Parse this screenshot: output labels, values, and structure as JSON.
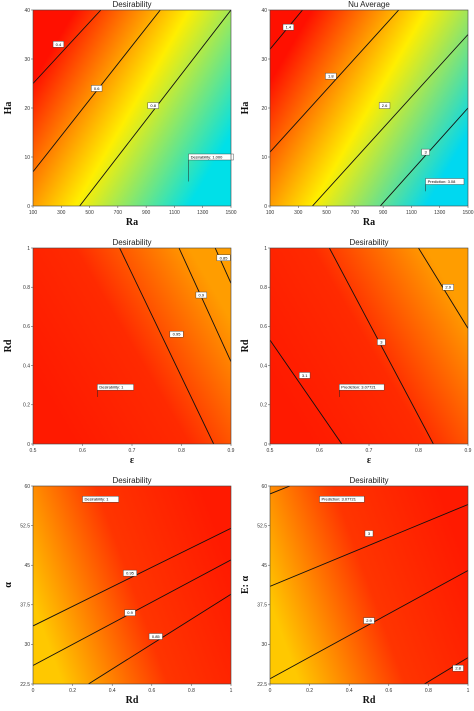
{
  "chart_data": [
    {
      "type": "contour",
      "title": "Desirability",
      "xlabel": "Ra",
      "ylabel": "Ha",
      "xlim": [
        100,
        1500
      ],
      "ylim": [
        0,
        40
      ],
      "xticks": [
        "100",
        "300",
        "500",
        "700",
        "900",
        "1100",
        "1300",
        "1500"
      ],
      "yticks": [
        "0",
        "10",
        "20",
        "30",
        "40"
      ],
      "gradient": {
        "from": "#00e0e8",
        "mid": "#ffee00",
        "to": "#ff1000",
        "angle": 150
      },
      "contours": [
        {
          "label": "0.4",
          "points": [
            [
              100,
              25
            ],
            [
              580,
              40
            ]
          ],
          "label_at": [
            280,
            33
          ]
        },
        {
          "label": "0.6",
          "points": [
            [
              100,
              7
            ],
            [
              1000,
              40
            ]
          ],
          "label_at": [
            550,
            24
          ]
        },
        {
          "label": "0.8",
          "points": [
            [
              430,
              0
            ],
            [
              1500,
              40
            ]
          ],
          "label_at": [
            950,
            20.5
          ]
        }
      ],
      "flag": {
        "text": "Desirability: 1.000",
        "at": [
          1200,
          5
        ],
        "box_at": [
          1200,
          10
        ]
      }
    },
    {
      "type": "contour",
      "title": "Nu Average",
      "xlabel": "Ra",
      "ylabel": "Ha",
      "xlim": [
        100,
        1500
      ],
      "ylim": [
        0,
        40
      ],
      "xticks": [
        "100",
        "300",
        "500",
        "700",
        "900",
        "1100",
        "1300",
        "1500"
      ],
      "yticks": [
        "0",
        "10",
        "20",
        "30",
        "40"
      ],
      "gradient": {
        "from": "#00d8f0",
        "mid": "#ffee00",
        "to": "#ff1000",
        "angle": 150
      },
      "contours": [
        {
          "label": "1.4",
          "points": [
            [
              100,
              32
            ],
            [
              330,
              40
            ]
          ],
          "label_at": [
            230,
            36.5
          ]
        },
        {
          "label": "1.8",
          "points": [
            [
              100,
              11
            ],
            [
              1010,
              40
            ]
          ],
          "label_at": [
            530,
            26.5
          ]
        },
        {
          "label": "2.6",
          "points": [
            [
              400,
              0
            ],
            [
              1500,
              35
            ]
          ],
          "label_at": [
            910,
            20.5
          ]
        },
        {
          "label": "3",
          "points": [
            [
              880,
              0
            ],
            [
              1500,
              20
            ]
          ],
          "label_at": [
            1200,
            11
          ]
        }
      ],
      "flag": {
        "text": "Prediction: 3.08",
        "at": [
          1200,
          3
        ],
        "box_at": [
          1200,
          5
        ]
      }
    },
    {
      "type": "contour",
      "title": "Desirability",
      "xlabel": "ε",
      "ylabel": "Rd",
      "xlim": [
        0.5,
        0.9
      ],
      "ylim": [
        0,
        1
      ],
      "xticks": [
        "0.5",
        "0.6",
        "0.7",
        "0.8",
        "0.9"
      ],
      "yticks": [
        "0",
        "0.2",
        "0.4",
        "0.6",
        "0.8",
        "1"
      ],
      "gradient": {
        "from": "#ff1a00",
        "mid": "#ff2a00",
        "to": "#ff9d00",
        "angle": 30
      },
      "contours": [
        {
          "label": "0.95",
          "points": [
            [
              0.675,
              1
            ],
            [
              0.865,
              0
            ]
          ],
          "label_at": [
            0.79,
            0.56
          ]
        },
        {
          "label": "0.9",
          "points": [
            [
              0.795,
              1
            ],
            [
              0.9,
              0.42
            ]
          ],
          "label_at": [
            0.84,
            0.76
          ]
        },
        {
          "label": "0.85",
          "points": [
            [
              0.868,
              1
            ],
            [
              0.9,
              0.82
            ]
          ],
          "label_at": [
            0.885,
            0.95
          ]
        }
      ],
      "flag": {
        "text": "Desirability: 1",
        "at": [
          0.63,
          0.24
        ],
        "box_at": [
          0.63,
          0.29
        ]
      }
    },
    {
      "type": "contour",
      "title": "Desirability",
      "xlabel": "ε",
      "ylabel": "Rd",
      "xlim": [
        0.5,
        0.9
      ],
      "ylim": [
        0,
        1
      ],
      "xticks": [
        "0.5",
        "0.6",
        "0.7",
        "0.8",
        "0.9"
      ],
      "yticks": [
        "0",
        "0.2",
        "0.4",
        "0.6",
        "0.8",
        "1"
      ],
      "gradient": {
        "from": "#ff1a00",
        "mid": "#ff2a00",
        "to": "#ff9d00",
        "angle": 30
      },
      "contours": [
        {
          "label": "3.1",
          "points": [
            [
              0.5,
              0.53
            ],
            [
              0.645,
              0
            ]
          ],
          "label_at": [
            0.57,
            0.35
          ]
        },
        {
          "label": "3",
          "points": [
            [
              0.62,
              1
            ],
            [
              0.83,
              0
            ]
          ],
          "label_at": [
            0.725,
            0.52
          ]
        },
        {
          "label": "2.9",
          "points": [
            [
              0.8,
              1
            ],
            [
              0.9,
              0.59
            ]
          ],
          "label_at": [
            0.86,
            0.8
          ]
        }
      ],
      "flag": {
        "text": "Prediction: 3.07721",
        "at": [
          0.64,
          0.24
        ],
        "box_at": [
          0.64,
          0.29
        ]
      }
    },
    {
      "type": "contour",
      "title": "Desirability",
      "xlabel": "Rd",
      "ylabel": "α",
      "xlim": [
        0,
        1
      ],
      "ylim": [
        22.5,
        60
      ],
      "xticks": [
        "0",
        "0.2",
        "0.4",
        "0.6",
        "0.8",
        "1"
      ],
      "yticks": [
        "22.5",
        "30",
        "37.5",
        "45",
        "52.5",
        "60"
      ],
      "gradient": {
        "from": "#ff1a00",
        "mid": "#ff3500",
        "to": "#ffc800",
        "angle": 200
      },
      "contours": [
        {
          "label": "0.95",
          "points": [
            [
              0,
              33.5
            ],
            [
              1,
              52
            ]
          ],
          "label_at": [
            0.49,
            43.5
          ]
        },
        {
          "label": "0.9",
          "points": [
            [
              0,
              26
            ],
            [
              1,
              46
            ]
          ],
          "label_at": [
            0.49,
            36
          ]
        },
        {
          "label": "0.85",
          "points": [
            [
              0.28,
              22.5
            ],
            [
              1,
              39.5
            ]
          ],
          "label_at": [
            0.62,
            31.5
          ]
        }
      ],
      "flag": {
        "text": "Desirability: 1",
        "at": [
          0.25,
          57
        ],
        "box_at": [
          0.25,
          57.5
        ]
      }
    },
    {
      "type": "contour",
      "title": "Desirability",
      "xlabel": "Rd",
      "ylabel": "E: α",
      "xlim": [
        0,
        1
      ],
      "ylim": [
        22.5,
        60
      ],
      "xticks": [
        "0",
        "0.2",
        "0.4",
        "0.6",
        "0.8",
        "1"
      ],
      "yticks": [
        "22.5",
        "30",
        "37.5",
        "45",
        "52.5",
        "60"
      ],
      "gradient": {
        "from": "#ff1a00",
        "mid": "#ff3500",
        "to": "#ffc800",
        "angle": 200
      },
      "contours": [
        {
          "label": "",
          "points": [
            [
              0,
              58.5
            ],
            [
              0.1,
              60
            ]
          ],
          "label_at": null
        },
        {
          "label": "3",
          "points": [
            [
              0,
              41
            ],
            [
              1,
              56.5
            ]
          ],
          "label_at": [
            0.5,
            51
          ]
        },
        {
          "label": "2.9",
          "points": [
            [
              0,
              23.5
            ],
            [
              1,
              44
            ]
          ],
          "label_at": [
            0.5,
            34.5
          ]
        },
        {
          "label": "2.8",
          "points": [
            [
              0.78,
              22.5
            ],
            [
              1,
              27.5
            ]
          ],
          "label_at": [
            0.95,
            25.5
          ]
        }
      ],
      "flag": {
        "text": "Prediction: 3.07721",
        "at": [
          0.25,
          57
        ],
        "box_at": [
          0.25,
          57.5
        ]
      }
    }
  ]
}
